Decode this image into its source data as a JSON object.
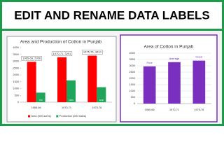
{
  "header": {
    "title": "EDIT AND RENAME DATA LABELS"
  },
  "chart_data": [
    {
      "type": "bar",
      "title": "Area and Production of Cotton in Punjab",
      "categories": [
        "1965-66",
        "1970-71",
        "1975-76"
      ],
      "series": [
        {
          "name": "Area (000 acres)",
          "color": "#ff0000",
          "values": [
            2956,
            3291,
            3410
          ],
          "value_labels": [
            "1965-66, 2956",
            "1970-71, 3291",
            "1975-76, 3410"
          ]
        },
        {
          "name": "Production (000 bales)",
          "color": "#1fa55a",
          "values": [
            700,
            1600,
            1100
          ]
        }
      ],
      "ylim": [
        0,
        4000
      ],
      "yticks": [
        0,
        500,
        1000,
        1500,
        2000,
        2500,
        3000,
        3500,
        4000
      ],
      "grid": false,
      "legend": "bottom"
    },
    {
      "type": "bar",
      "title": "Area of Cotton in Punjab",
      "categories": [
        "1965-66",
        "1970-71",
        "1975-76"
      ],
      "values": [
        2956,
        3291,
        3410
      ],
      "value_labels": [
        "Poor",
        "Average",
        "Good"
      ],
      "color": "#7b2fbe",
      "ylim": [
        0,
        4000
      ],
      "yticks": [
        0,
        500,
        1000,
        1500,
        2000,
        2500,
        3000,
        3500,
        4000
      ],
      "grid": true
    }
  ]
}
